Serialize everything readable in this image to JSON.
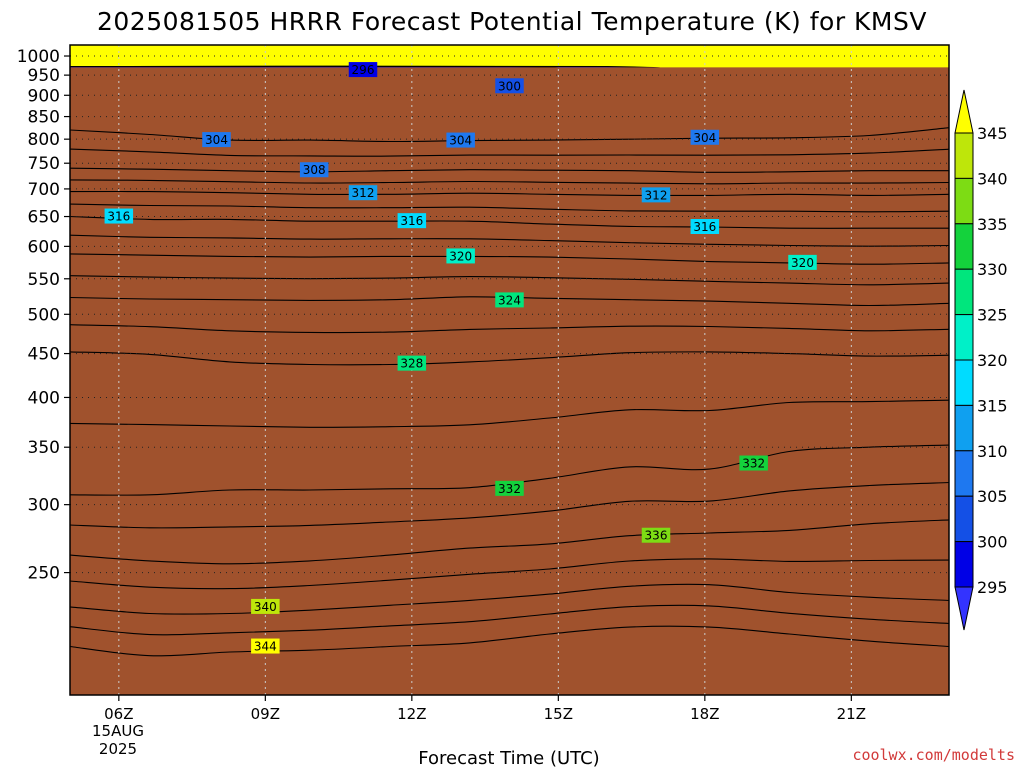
{
  "chart_data": {
    "type": "heatmap",
    "title": "2025081505 HRRR Forecast Potential Temperature (K) for KMSV",
    "xlabel": "Forecast Time (UTC)",
    "ylabel": "",
    "x_ticks": [
      "06Z",
      "09Z",
      "12Z",
      "15Z",
      "18Z",
      "21Z"
    ],
    "x_date": [
      "15AUG",
      "2025"
    ],
    "x_range_hours": [
      5,
      23
    ],
    "y_ticks": [
      250,
      300,
      350,
      400,
      450,
      500,
      550,
      600,
      650,
      700,
      750,
      800,
      850,
      900,
      950,
      1000
    ],
    "y_range_hpa": [
      1030,
      180
    ],
    "y_scale": "log",
    "ground_level_hpa": 970,
    "grid": "dotted",
    "colorbar": {
      "placement": "right",
      "levels": [
        295,
        300,
        305,
        310,
        315,
        320,
        325,
        330,
        335,
        340,
        345
      ],
      "colors": [
        "#3333ff",
        "#0000e6",
        "#1450e6",
        "#1e78f0",
        "#0fa0f0",
        "#00dcff",
        "#00f0c8",
        "#00e67d",
        "#14d23c",
        "#7ddc14",
        "#bee60a",
        "#ffff00"
      ]
    },
    "isentropes_K": [
      {
        "theta": 344,
        "p_hpa": [
          205,
          200,
          202,
          203,
          205,
          207,
          212,
          216,
          216,
          212,
          208,
          205
        ]
      },
      {
        "theta": 340,
        "p_hpa": [
          228,
          224,
          224,
          226,
          229,
          232,
          236,
          241,
          242,
          237,
          234,
          232
        ]
      },
      {
        "theta": 336,
        "p_hpa": [
          262,
          258,
          256,
          258,
          262,
          267,
          270,
          276,
          278,
          280,
          285,
          288
        ]
      },
      {
        "theta": 332,
        "p_hpa": [
          308,
          308,
          312,
          312,
          313,
          314,
          322,
          332,
          330,
          346,
          350,
          352
        ]
      },
      {
        "theta": 328,
        "p_hpa": [
          452,
          449,
          440,
          437,
          437,
          440,
          445,
          451,
          452,
          450,
          447,
          448
        ]
      },
      {
        "theta": 324,
        "p_hpa": [
          523,
          521,
          520,
          519,
          520,
          524,
          522,
          520,
          518,
          515,
          512,
          515
        ]
      },
      {
        "theta": 320,
        "p_hpa": [
          588,
          586,
          584,
          583,
          584,
          584,
          583,
          580,
          576,
          574,
          572,
          574
        ]
      },
      {
        "theta": 316,
        "p_hpa": [
          650,
          645,
          645,
          642,
          642,
          642,
          637,
          633,
          632,
          630,
          630,
          630
        ]
      },
      {
        "theta": 312,
        "p_hpa": [
          695,
          695,
          693,
          690,
          690,
          692,
          690,
          688,
          688,
          690,
          688,
          690
        ]
      },
      {
        "theta": 308,
        "p_hpa": [
          740,
          738,
          735,
          733,
          735,
          737,
          736,
          735,
          732,
          733,
          735,
          735
        ]
      },
      {
        "theta": 304,
        "p_hpa": [
          820,
          810,
          798,
          798,
          795,
          797,
          798,
          800,
          802,
          803,
          808,
          825
        ]
      }
    ],
    "isentrope_labels": [
      {
        "theta": 344,
        "x_hour": 9,
        "p_hpa": 205
      },
      {
        "theta": 340,
        "x_hour": 9,
        "p_hpa": 228
      },
      {
        "theta": 336,
        "x_hour": 17,
        "p_hpa": 276
      },
      {
        "theta": 332,
        "x_hour": 14,
        "p_hpa": 313
      },
      {
        "theta": 332,
        "x_hour": 19,
        "p_hpa": 335
      },
      {
        "theta": 328,
        "x_hour": 12,
        "p_hpa": 438
      },
      {
        "theta": 324,
        "x_hour": 14,
        "p_hpa": 519
      },
      {
        "theta": 320,
        "x_hour": 13,
        "p_hpa": 584
      },
      {
        "theta": 320,
        "x_hour": 20,
        "p_hpa": 574
      },
      {
        "theta": 316,
        "x_hour": 6,
        "p_hpa": 650
      },
      {
        "theta": 316,
        "x_hour": 12,
        "p_hpa": 642
      },
      {
        "theta": 316,
        "x_hour": 18,
        "p_hpa": 632
      },
      {
        "theta": 312,
        "x_hour": 11,
        "p_hpa": 692
      },
      {
        "theta": 312,
        "x_hour": 17,
        "p_hpa": 688
      },
      {
        "theta": 308,
        "x_hour": 10,
        "p_hpa": 736
      },
      {
        "theta": 304,
        "x_hour": 8,
        "p_hpa": 798
      },
      {
        "theta": 304,
        "x_hour": 13,
        "p_hpa": 797
      },
      {
        "theta": 304,
        "x_hour": 18,
        "p_hpa": 803
      },
      {
        "theta": 300,
        "x_hour": 14,
        "p_hpa": 922
      },
      {
        "theta": 296,
        "x_hour": 11,
        "p_hpa": 963
      }
    ]
  },
  "credit": "coolwx.com/modelts"
}
